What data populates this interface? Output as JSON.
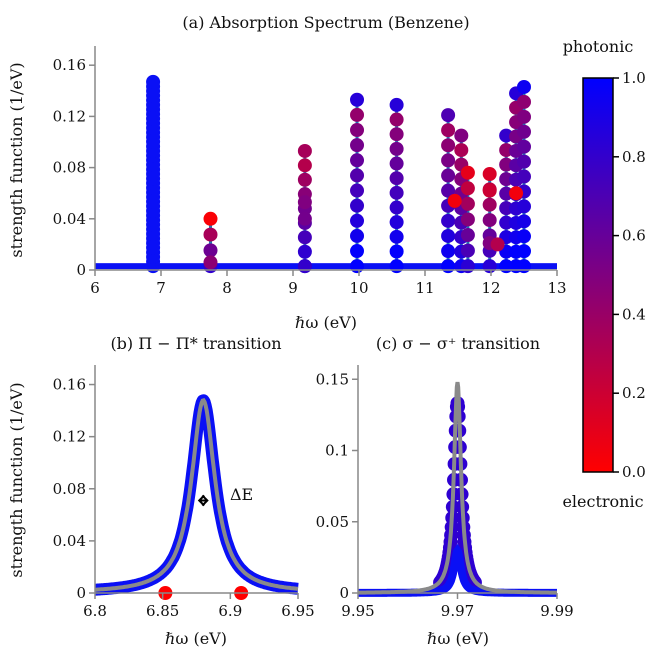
{
  "chart_data": [
    {
      "panel": "a",
      "type": "scatter",
      "title": "(a) Absorption Spectrum (Benzene)",
      "xlabel": "ℏω (eV)",
      "ylabel": "strength function (1/eV)",
      "xlim": [
        6,
        13
      ],
      "ylim": [
        0,
        0.175
      ],
      "xticks": [
        "6",
        "7",
        "8",
        "9",
        "10",
        "11",
        "12",
        "13"
      ],
      "xtick_values": [
        6,
        7,
        8,
        9,
        10,
        11,
        12,
        13
      ],
      "yticks": [
        "0",
        "0.04",
        "0.08",
        "0.12",
        "0.16"
      ],
      "ytick_values": [
        0,
        0.04,
        0.08,
        0.12,
        0.16
      ],
      "baseline": 0.003,
      "stick_color": "#1f77b4",
      "peaks": [
        {
          "x": 6.88,
          "top": 0.147,
          "photonic": 0.97,
          "bright": true
        },
        {
          "x": 7.75,
          "top": 0.04,
          "photonic": 0.02
        },
        {
          "x": 9.18,
          "top": 0.093,
          "photonic": 0.35
        },
        {
          "x": 9.97,
          "top": 0.133,
          "photonic": 0.85
        },
        {
          "x": 10.57,
          "top": 0.129,
          "photonic": 0.85
        },
        {
          "x": 11.35,
          "top": 0.121,
          "photonic": 0.7
        },
        {
          "x": 11.55,
          "top": 0.105,
          "photonic": 0.5
        },
        {
          "x": 11.65,
          "top": 0.076,
          "photonic": 0.1
        },
        {
          "x": 11.98,
          "top": 0.075,
          "photonic": 0.15
        },
        {
          "x": 12.23,
          "top": 0.105,
          "photonic": 0.8
        },
        {
          "x": 12.38,
          "top": 0.138,
          "photonic": 0.85
        },
        {
          "x": 12.5,
          "top": 0.143,
          "photonic": 0.95
        }
      ],
      "extra_points": [
        {
          "x": 7.75,
          "y": 0.006,
          "photonic": 0.45
        },
        {
          "x": 9.18,
          "y": 0.053,
          "photonic": 0.5
        },
        {
          "x": 9.18,
          "y": 0.04,
          "photonic": 0.55
        },
        {
          "x": 9.18,
          "y": 0.003,
          "photonic": 0.8
        },
        {
          "x": 11.45,
          "y": 0.054,
          "photonic": 0.05
        },
        {
          "x": 11.98,
          "y": 0.062,
          "photonic": 0.2
        },
        {
          "x": 11.98,
          "y": 0.021,
          "photonic": 0.5
        },
        {
          "x": 12.38,
          "y": 0.06,
          "photonic": 0.05
        },
        {
          "x": 12.1,
          "y": 0.02,
          "photonic": 0.3
        }
      ]
    },
    {
      "panel": "b",
      "type": "line",
      "title": "(b) Π − Π* transition",
      "xlabel": "ℏω (eV)",
      "ylabel": "strength function (1/eV)",
      "xlim": [
        6.8,
        6.95
      ],
      "ylim": [
        0,
        0.175
      ],
      "xticks": [
        "6.8",
        "6.85",
        "6.9",
        "6.95"
      ],
      "xtick_values": [
        6.8,
        6.85,
        6.9,
        6.95
      ],
      "yticks": [
        "0",
        "0.04",
        "0.08",
        "0.12",
        "0.16"
      ],
      "ytick_values": [
        0,
        0.04,
        0.08,
        0.12,
        0.16
      ],
      "lorentzian": {
        "center": 6.88,
        "peak": 0.148,
        "hwhm": 0.0105
      },
      "red_points": [
        6.852,
        6.908
      ],
      "annotation": "ΔE",
      "annotation_y": 0.071
    },
    {
      "panel": "c",
      "type": "line",
      "title": "(c) σ − σ⁺ transition",
      "xlabel": "ℏω (eV)",
      "xlim": [
        9.95,
        9.99
      ],
      "ylim": [
        0,
        0.16
      ],
      "xticks": [
        "9.95",
        "9.97",
        "9.99"
      ],
      "xtick_values": [
        9.95,
        9.97,
        9.99
      ],
      "yticks": [
        "0",
        "0.05",
        "0.1",
        "0.15"
      ],
      "ytick_values": [
        0,
        0.05,
        0.1,
        0.15
      ],
      "lorentzian": {
        "center": 9.97,
        "peak": 0.148,
        "hwhm": 0.00085
      }
    }
  ],
  "colorbar": {
    "top_label": "photonic",
    "bottom_label": "electronic",
    "ticks": [
      "0.0",
      "0.2",
      "0.4",
      "0.6",
      "0.8",
      "1.0"
    ],
    "tick_values": [
      0,
      0.2,
      0.4,
      0.6,
      0.8,
      1.0
    ],
    "color_low": "#ff0000",
    "color_high": "#0000ff"
  },
  "colors": {
    "bright_blue": "#0a10f5",
    "gray_line": "#8a8a8a",
    "stick": "#1f77b4",
    "red_point": "#ff0000"
  }
}
